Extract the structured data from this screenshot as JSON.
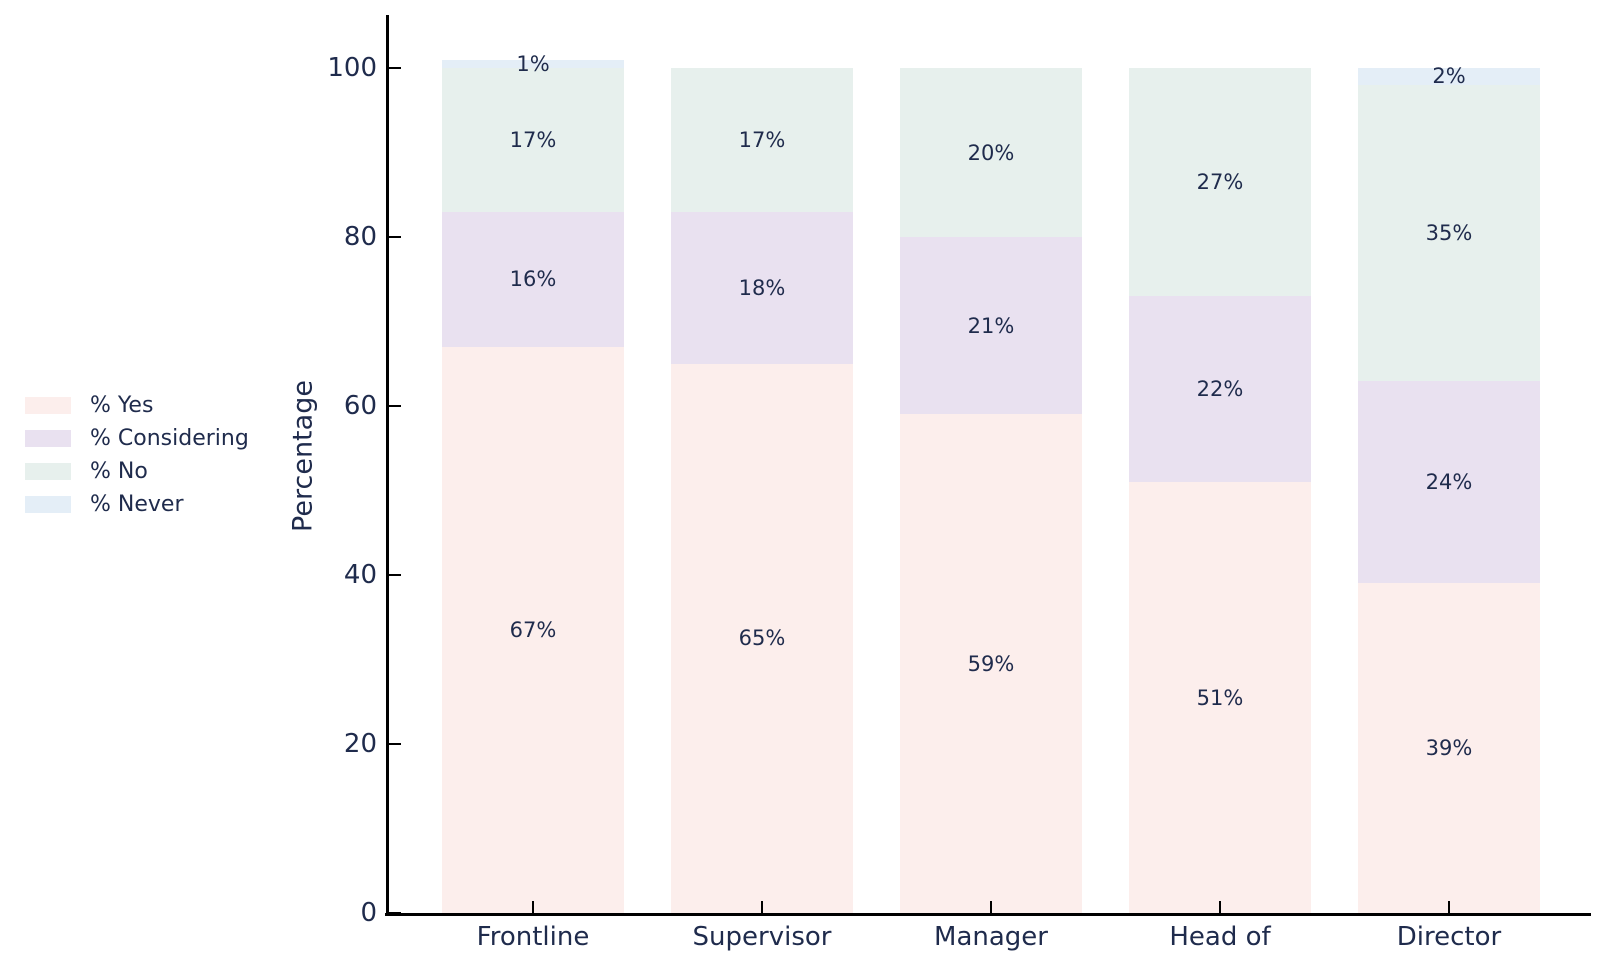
{
  "chart_data": {
    "type": "bar",
    "stacked": true,
    "title": "",
    "xlabel": "",
    "ylabel": "Percentage",
    "categories": [
      "Frontline",
      "Supervisor",
      "Manager",
      "Head of",
      "Director"
    ],
    "series": [
      {
        "name": "% Yes",
        "color": "#fceeec",
        "values": [
          67,
          65,
          59,
          51,
          39
        ]
      },
      {
        "name": "% Considering",
        "color": "#e9e1f0",
        "values": [
          16,
          18,
          21,
          22,
          24
        ]
      },
      {
        "name": "% No",
        "color": "#e7f0ed",
        "values": [
          17,
          17,
          20,
          27,
          35
        ]
      },
      {
        "name": "% Never",
        "color": "#e4eef7",
        "values": [
          1,
          0,
          0,
          0,
          2
        ]
      }
    ],
    "value_suffix": "%",
    "yticks": [
      "0",
      "20",
      "40",
      "60",
      "80",
      "100"
    ],
    "ylim": [
      0,
      106
    ],
    "grid": false,
    "legend_position": "left",
    "text_color": "#1f2b4c",
    "axis_color": "#000000"
  }
}
